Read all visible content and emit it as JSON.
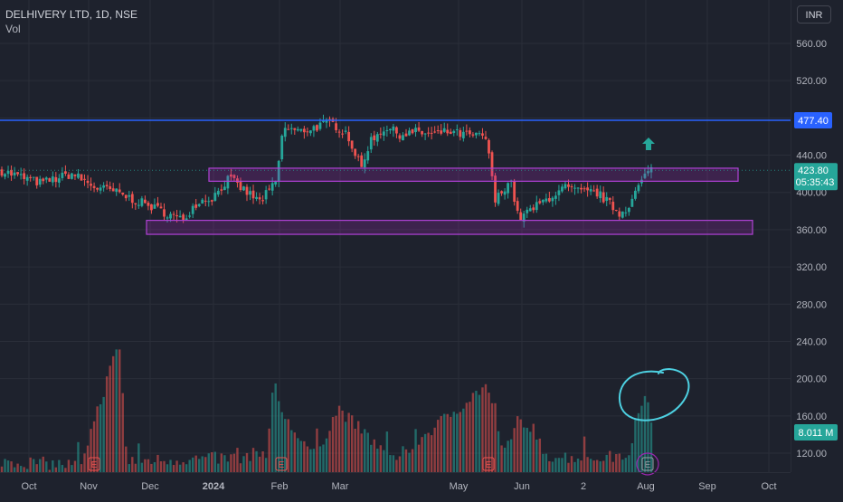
{
  "header": {
    "symbol": "DELHIVERY LTD, 1D, NSE",
    "volume_label": "Vol",
    "currency_button": "INR"
  },
  "colors": {
    "background": "#1e222d",
    "up": "#26a69a",
    "down": "#ef5350",
    "resistance_line": "#2962ff",
    "zone_fill": "#9c27b0",
    "annotation": "#4dd0e1",
    "earnings": "#ef5350"
  },
  "chart_data": {
    "type": "candlestick",
    "y_ticks": [
      "560.00",
      "520.00",
      "480.00",
      "440.00",
      "400.00",
      "360.00",
      "320.00",
      "280.00",
      "240.00",
      "200.00",
      "160.00",
      "120.00"
    ],
    "x_ticks": [
      "Oct",
      "Nov",
      "Dec",
      "2024",
      "Feb",
      "Mar",
      "May",
      "Jun",
      "2",
      "Aug",
      "Sep",
      "Oct"
    ],
    "ylim": [
      100,
      580
    ],
    "price_labels": {
      "resistance": "477.40",
      "last_price": "423.80",
      "countdown": "05:35:43",
      "last_volume": "8.011 M"
    },
    "resistance_level": 477.4,
    "zones": [
      {
        "name": "upper-zone",
        "low": 412,
        "high": 426
      },
      {
        "name": "lower-zone",
        "low": 355,
        "high": 370
      }
    ],
    "earnings_marker": "E",
    "price_path": [
      [
        0,
        423
      ],
      [
        0.05,
        410
      ],
      [
        0.09,
        420
      ],
      [
        0.12,
        405
      ],
      [
        0.14,
        402
      ],
      [
        0.16,
        395
      ],
      [
        0.19,
        385
      ],
      [
        0.21,
        378
      ],
      [
        0.23,
        370
      ],
      [
        0.25,
        390
      ],
      [
        0.27,
        395
      ],
      [
        0.29,
        415
      ],
      [
        0.31,
        402
      ],
      [
        0.33,
        390
      ],
      [
        0.35,
        410
      ],
      [
        0.36,
        470
      ],
      [
        0.38,
        465
      ],
      [
        0.4,
        470
      ],
      [
        0.42,
        475
      ],
      [
        0.44,
        465
      ],
      [
        0.46,
        425
      ],
      [
        0.47,
        455
      ],
      [
        0.49,
        470
      ],
      [
        0.51,
        462
      ],
      [
        0.53,
        465
      ],
      [
        0.55,
        462
      ],
      [
        0.57,
        465
      ],
      [
        0.59,
        462
      ],
      [
        0.61,
        460
      ],
      [
        0.62,
        458
      ],
      [
        0.63,
        390
      ],
      [
        0.65,
        415
      ],
      [
        0.66,
        372
      ],
      [
        0.68,
        383
      ],
      [
        0.7,
        395
      ],
      [
        0.72,
        405
      ],
      [
        0.74,
        400
      ],
      [
        0.76,
        400
      ],
      [
        0.77,
        393
      ],
      [
        0.79,
        377
      ],
      [
        0.8,
        385
      ],
      [
        0.81,
        400
      ],
      [
        0.82,
        416
      ],
      [
        0.83,
        424
      ]
    ],
    "volume_path": [
      [
        0,
        105
      ],
      [
        0.1,
        100
      ],
      [
        0.15,
        230
      ],
      [
        0.16,
        105
      ],
      [
        0.3,
        108
      ],
      [
        0.34,
        115
      ],
      [
        0.35,
        185
      ],
      [
        0.36,
        150
      ],
      [
        0.4,
        110
      ],
      [
        0.43,
        160
      ],
      [
        0.5,
        105
      ],
      [
        0.62,
        185
      ],
      [
        0.64,
        110
      ],
      [
        0.66,
        150
      ],
      [
        0.7,
        110
      ],
      [
        0.75,
        108
      ],
      [
        0.8,
        110
      ],
      [
        0.82,
        175
      ],
      [
        0.83,
        150
      ]
    ]
  }
}
